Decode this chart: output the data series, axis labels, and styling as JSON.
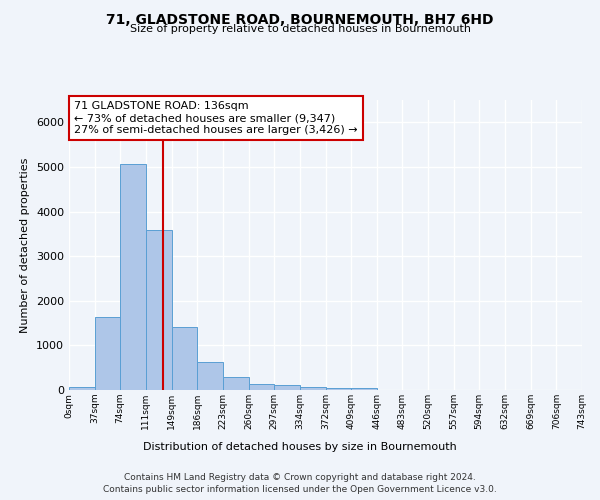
{
  "title": "71, GLADSTONE ROAD, BOURNEMOUTH, BH7 6HD",
  "subtitle": "Size of property relative to detached houses in Bournemouth",
  "xlabel": "Distribution of detached houses by size in Bournemouth",
  "ylabel": "Number of detached properties",
  "footer_line1": "Contains HM Land Registry data © Crown copyright and database right 2024.",
  "footer_line2": "Contains public sector information licensed under the Open Government Licence v3.0.",
  "bar_edges": [
    0,
    37,
    74,
    111,
    149,
    186,
    223,
    260,
    297,
    334,
    372,
    409,
    446,
    483,
    520,
    557,
    594,
    632,
    669,
    706,
    743
  ],
  "bar_heights": [
    75,
    1630,
    5060,
    3580,
    1410,
    620,
    290,
    145,
    105,
    75,
    50,
    55,
    0,
    0,
    0,
    0,
    0,
    0,
    0,
    0
  ],
  "bar_color": "#aec6e8",
  "bar_edgecolor": "#5a9fd4",
  "property_size": 136,
  "vline_color": "#cc0000",
  "annotation_text": "71 GLADSTONE ROAD: 136sqm\n← 73% of detached houses are smaller (9,347)\n27% of semi-detached houses are larger (3,426) →",
  "annotation_box_color": "#ffffff",
  "annotation_box_edgecolor": "#cc0000",
  "ylim": [
    0,
    6500
  ],
  "background_color": "#f0f4fa",
  "plot_background": "#f0f4fa",
  "grid_color": "#ffffff",
  "tick_labels": [
    "0sqm",
    "37sqm",
    "74sqm",
    "111sqm",
    "149sqm",
    "186sqm",
    "223sqm",
    "260sqm",
    "297sqm",
    "334sqm",
    "372sqm",
    "409sqm",
    "446sqm",
    "483sqm",
    "520sqm",
    "557sqm",
    "594sqm",
    "632sqm",
    "669sqm",
    "706sqm",
    "743sqm"
  ]
}
